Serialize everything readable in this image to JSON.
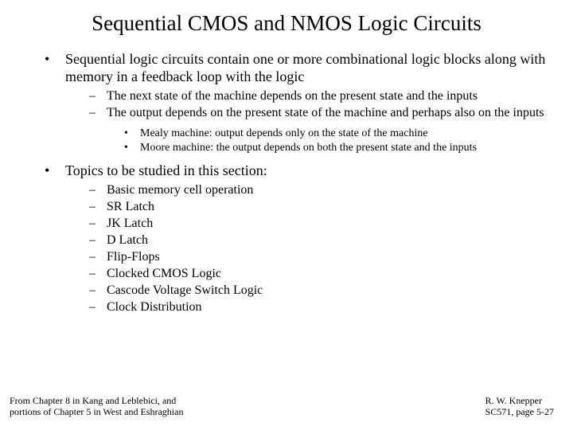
{
  "title": "Sequential CMOS and NMOS Logic Circuits",
  "b1_1": "Sequential logic circuits contain one or more combinational logic blocks along with memory in a feedback loop with the logic",
  "b2_1": "The next state of the machine depends on the present state and the inputs",
  "b2_2": "The output depends on the present state of the machine and perhaps also on the inputs",
  "b3_1": "Mealy machine:  output depends only on the state of the machine",
  "b3_2": "Moore machine:  the output depends on both the present state and the inputs",
  "b1_2": "Topics to be studied in this section:",
  "t1": "Basic memory cell operation",
  "t2": "SR Latch",
  "t3": "JK Latch",
  "t4": "D Latch",
  "t5": "Flip-Flops",
  "t6": "Clocked CMOS Logic",
  "t7": "Cascode Voltage Switch Logic",
  "t8": "Clock Distribution",
  "footer_left_1": "From Chapter 8 in Kang and Leblebici, and",
  "footer_left_2": "portions of Chapter 5 in West and Eshraghian",
  "footer_right_1": "R. W. Knepper",
  "footer_right_2": "SC571, page 5-27"
}
